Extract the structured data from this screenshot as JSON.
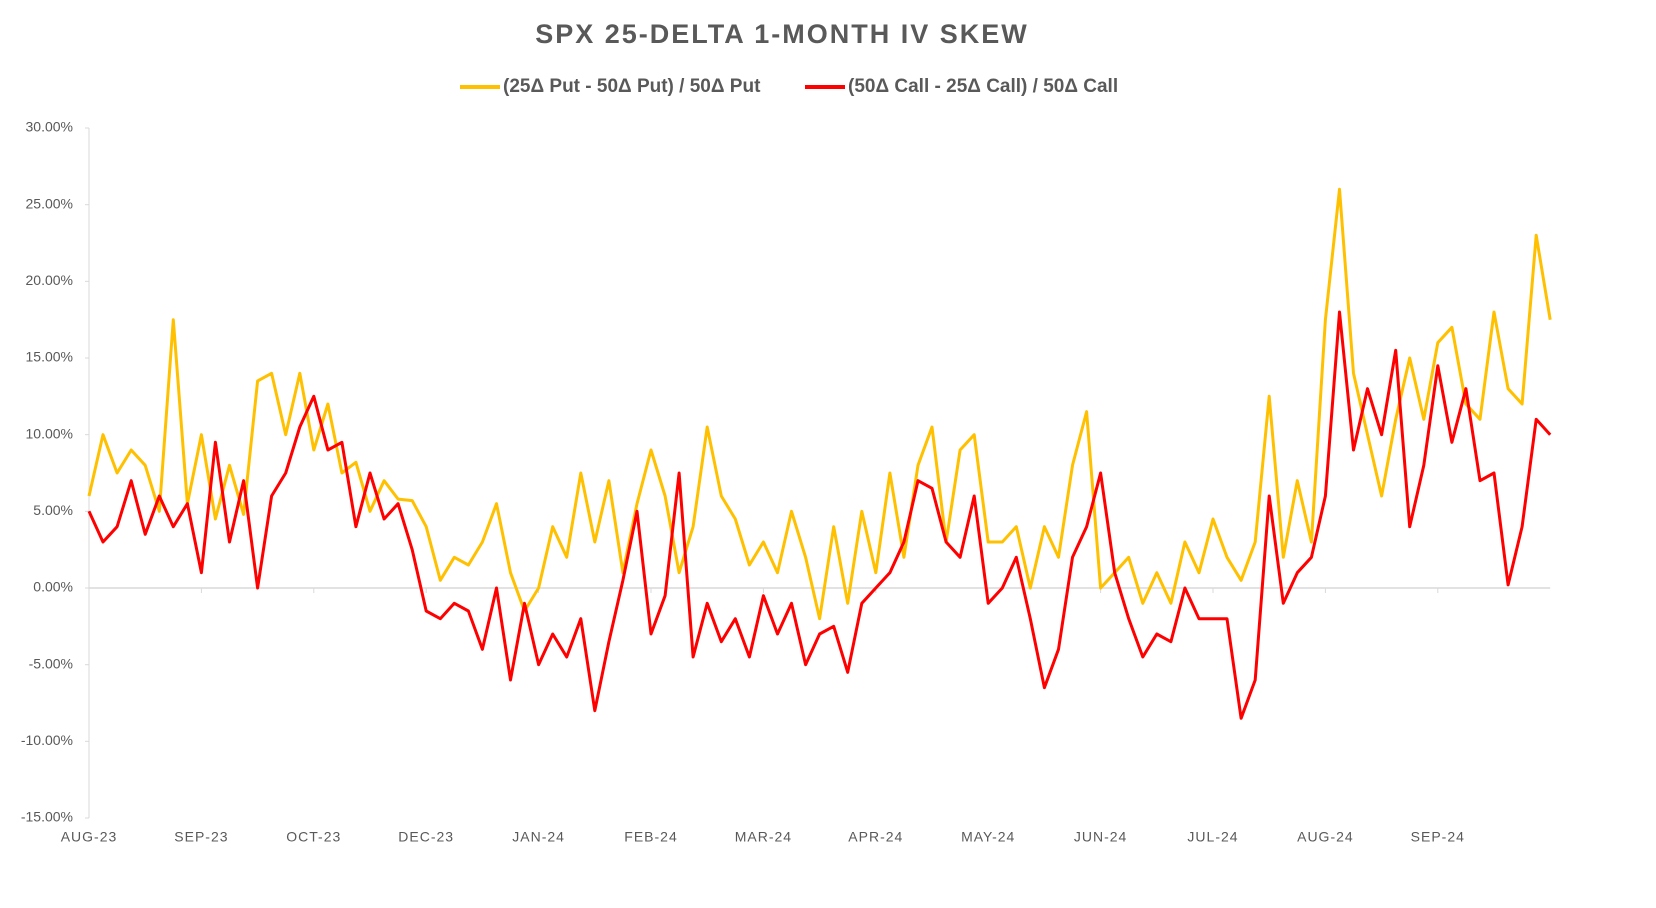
{
  "chart_data": {
    "type": "line",
    "title": "SPX 25-DELTA 1-MONTH IV SKEW",
    "categories": [
      "AUG-23",
      null,
      null,
      null,
      null,
      null,
      null,
      null,
      "SEP-23",
      null,
      null,
      null,
      null,
      null,
      null,
      null,
      "OCT-23",
      null,
      null,
      null,
      null,
      null,
      null,
      null,
      "DEC-23",
      null,
      null,
      null,
      null,
      null,
      null,
      null,
      "JAN-24",
      null,
      null,
      null,
      null,
      null,
      null,
      null,
      "FEB-24",
      null,
      null,
      null,
      null,
      null,
      null,
      null,
      "MAR-24",
      null,
      null,
      null,
      null,
      null,
      null,
      null,
      "APR-24",
      null,
      null,
      null,
      null,
      null,
      null,
      null,
      "MAY-24",
      null,
      null,
      null,
      null,
      null,
      null,
      null,
      "JUN-24",
      null,
      null,
      null,
      null,
      null,
      null,
      null,
      "JUL-24",
      null,
      null,
      null,
      null,
      null,
      null,
      null,
      "AUG-24",
      null,
      null,
      null,
      null,
      null,
      null,
      null,
      "SEP-24",
      null,
      null,
      null,
      null,
      null,
      null,
      null,
      null
    ],
    "series": [
      {
        "name": "(25Δ Put - 50Δ Put) / 50Δ Put",
        "color": "#ffc000",
        "values": [
          6,
          10,
          7.5,
          9,
          8,
          5,
          17.5,
          5.5,
          10,
          4.5,
          8,
          4.8,
          13.5,
          14,
          10,
          14,
          9,
          12,
          7.5,
          8.2,
          5,
          7,
          5.8,
          5.7,
          4,
          0.5,
          2,
          1.5,
          3,
          5.5,
          1,
          -1.5,
          0,
          4,
          2,
          7.5,
          3,
          7,
          1,
          5.5,
          9,
          6,
          1,
          4,
          10.5,
          6,
          4.5,
          1.5,
          3,
          1,
          5,
          2,
          -2,
          4,
          -1,
          5,
          1,
          7.5,
          2,
          8,
          10.5,
          3,
          9,
          10,
          3,
          3,
          4,
          0,
          4,
          2,
          8,
          11.5,
          0,
          1,
          2,
          -1,
          1,
          -1,
          3,
          1,
          4.5,
          2,
          0.5,
          3,
          12.5,
          2,
          7,
          3,
          17.5,
          26,
          14,
          10,
          6,
          11,
          15,
          11,
          16,
          17,
          12,
          11,
          18,
          13,
          12,
          23,
          17.5
        ]
      },
      {
        "name": "(50Δ Call - 25Δ Call) / 50Δ Call",
        "color": "#ff0000",
        "values": [
          5,
          3,
          4,
          7,
          3.5,
          6,
          4,
          5.5,
          1,
          9.5,
          3,
          7,
          0,
          6,
          7.5,
          10.5,
          12.5,
          9,
          9.5,
          4,
          7.5,
          4.5,
          5.5,
          2.5,
          -1.5,
          -2,
          -1,
          -1.5,
          -4,
          0,
          -6,
          -1,
          -5,
          -3,
          -4.5,
          -2,
          -8,
          -3.5,
          0.5,
          5,
          -3,
          -0.5,
          7.5,
          -4.5,
          -1,
          -3.5,
          -2,
          -4.5,
          -0.5,
          -3,
          -1,
          -5,
          -3,
          -2.5,
          -5.5,
          -1,
          0,
          1,
          3,
          7,
          6.5,
          3,
          2,
          6,
          -1,
          0,
          2,
          -2,
          -6.5,
          -4,
          2,
          4,
          7.5,
          1,
          -2,
          -4.5,
          -3,
          -3.5,
          0,
          -2,
          -2,
          -2,
          -8.5,
          -6,
          6,
          -1,
          1,
          2,
          6,
          18,
          9,
          13,
          10,
          15.5,
          4,
          8,
          14.5,
          9.5,
          13,
          7,
          7.5,
          0.2,
          4,
          11,
          10
        ]
      }
    ],
    "ylim": [
      -15,
      30
    ],
    "yticks": [
      {
        "value": -15,
        "label": "-15.00%"
      },
      {
        "value": -10,
        "label": "-10.00%"
      },
      {
        "value": -5,
        "label": "-5.00%"
      },
      {
        "value": 0,
        "label": "0.00%"
      },
      {
        "value": 5,
        "label": "5.00%"
      },
      {
        "value": 10,
        "label": "10.00%"
      },
      {
        "value": 15,
        "label": "15.00%"
      },
      {
        "value": 20,
        "label": "20.00%"
      },
      {
        "value": 25,
        "label": "25.00%"
      },
      {
        "value": 30,
        "label": "30.00%"
      }
    ],
    "legend": "top"
  }
}
